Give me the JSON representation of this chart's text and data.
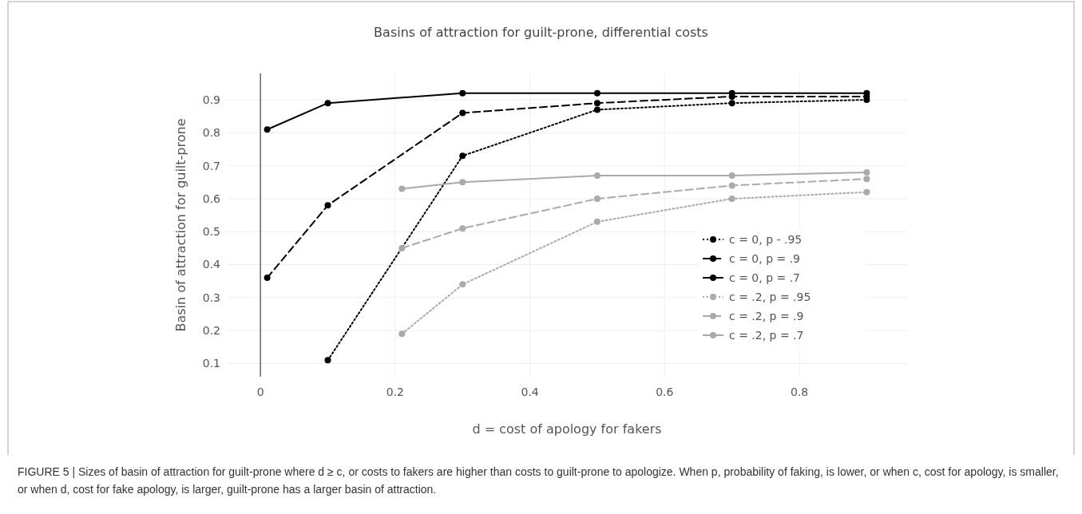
{
  "chart_data": {
    "type": "line",
    "title": "Basins of attraction for guilt-prone, differential costs",
    "xlabel": "d = cost of apology for fakers",
    "ylabel": "Basin of attraction for guilt-prone",
    "xlim": [
      -0.05,
      0.96
    ],
    "ylim": [
      0.06,
      0.98
    ],
    "xticks": [
      0,
      0.2,
      0.4,
      0.6,
      0.8
    ],
    "yticks": [
      0.1,
      0.2,
      0.3,
      0.4,
      0.5,
      0.6,
      0.7,
      0.8,
      0.9
    ],
    "grid": true,
    "legend": "bottom right",
    "marker": "circle",
    "series": [
      {
        "name": "c = 0, p - .95",
        "color": "#000000",
        "line_style": "dotted",
        "x": [
          0.1,
          0.3,
          0.5,
          0.7,
          0.9
        ],
        "values": [
          0.11,
          0.73,
          0.87,
          0.89,
          0.9
        ]
      },
      {
        "name": "c = 0, p = .9",
        "color": "#000000",
        "line_style": "dashed",
        "x": [
          0.01,
          0.1,
          0.3,
          0.5,
          0.7,
          0.9
        ],
        "values": [
          0.36,
          0.58,
          0.86,
          0.89,
          0.91,
          0.91
        ]
      },
      {
        "name": "c = 0, p = .7",
        "color": "#000000",
        "line_style": "solid",
        "x": [
          0.01,
          0.1,
          0.3,
          0.5,
          0.7,
          0.9
        ],
        "values": [
          0.81,
          0.89,
          0.92,
          0.92,
          0.92,
          0.92
        ]
      },
      {
        "name": "c = .2, p = .95",
        "color": "#aaaaaa",
        "line_style": "dotted",
        "x": [
          0.21,
          0.3,
          0.5,
          0.7,
          0.9
        ],
        "values": [
          0.19,
          0.34,
          0.53,
          0.6,
          0.62
        ]
      },
      {
        "name": "c = .2, p = .9",
        "color": "#aaaaaa",
        "line_style": "dashed",
        "x": [
          0.21,
          0.3,
          0.5,
          0.7,
          0.9
        ],
        "values": [
          0.45,
          0.51,
          0.6,
          0.64,
          0.66
        ]
      },
      {
        "name": "c = .2, p = .7",
        "color": "#aaaaaa",
        "line_style": "solid",
        "x": [
          0.21,
          0.3,
          0.5,
          0.7,
          0.9
        ],
        "values": [
          0.63,
          0.65,
          0.67,
          0.67,
          0.68
        ]
      }
    ],
    "annotations": [
      "FIGURE 5 | Sizes of basin of attraction for guilt-prone where d ≥ c, or costs to fakers are higher than costs to guilt-prone to apologize. When p, probability of faking, is lower, or when c, cost for apology, is smaller, or when d, cost for fake apology, is larger, guilt-prone has a larger basin of attraction."
    ]
  }
}
